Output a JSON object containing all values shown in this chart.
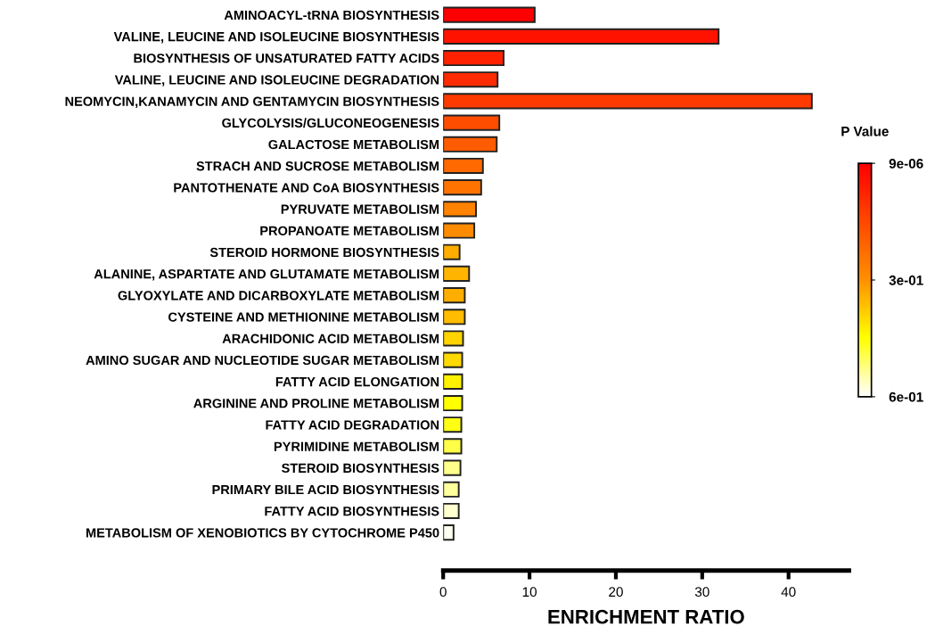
{
  "chart_data": {
    "type": "bar",
    "orientation": "horizontal",
    "xlabel": "ENRICHMENT RATIO",
    "clabel": "P Value",
    "categories": [
      "AMINOACYL-tRNA BIOSYNTHESIS",
      "VALINE, LEUCINE AND ISOLEUCINE BIOSYNTHESIS",
      "BIOSYNTHESIS OF UNSATURATED FATTY ACIDS",
      "VALINE, LEUCINE AND ISOLEUCINE DEGRADATION",
      "NEOMYCIN,KANAMYCIN AND GENTAMYCIN BIOSYNTHESIS",
      "GLYCOLYSIS/GLUCONEOGENESIS",
      "GALACTOSE METABOLISM",
      "STRACH AND SUCROSE METABOLISM",
      "PANTOTHENATE AND CoA BIOSYNTHESIS",
      "PYRUVATE METABOLISM",
      "PROPANOATE METABOLISM",
      "STEROID HORMONE BIOSYNTHESIS",
      "ALANINE, ASPARTATE AND GLUTAMATE METABOLISM",
      "GLYOXYLATE AND DICARBOXYLATE METABOLISM",
      "CYSTEINE AND METHIONINE METABOLISM",
      "ARACHIDONIC ACID METABOLISM",
      "AMINO SUGAR AND NUCLEOTIDE SUGAR METABOLISM",
      "FATTY ACID ELONGATION",
      "ARGININE AND PROLINE METABOLISM",
      "FATTY ACID DEGRADATION",
      "PYRIMIDINE METABOLISM",
      "STEROID BIOSYNTHESIS",
      "PRIMARY BILE ACID BIOSYNTHESIS",
      "FATTY ACID BIOSYNTHESIS",
      "METABOLISM OF XENOBIOTICS BY CYTOCHROME P450"
    ],
    "values": [
      10.6,
      31.9,
      7.0,
      6.3,
      42.7,
      6.5,
      6.2,
      4.6,
      4.4,
      3.8,
      3.6,
      1.9,
      3.0,
      2.5,
      2.5,
      2.3,
      2.2,
      2.2,
      2.2,
      2.1,
      2.1,
      2.0,
      1.8,
      1.8,
      1.2
    ],
    "cvalues": [
      9e-06,
      0.04,
      0.07,
      0.09,
      0.12,
      0.16,
      0.19,
      0.22,
      0.24,
      0.27,
      0.29,
      0.34,
      0.35,
      0.34,
      0.36,
      0.39,
      0.4,
      0.43,
      0.45,
      0.46,
      0.49,
      0.53,
      0.54,
      0.57,
      0.59
    ],
    "xlim": [
      0,
      47
    ],
    "xticks": [
      0,
      10,
      20,
      30,
      40
    ],
    "clim": [
      0.6,
      9e-06
    ],
    "cticks": [
      {
        "value": 9e-06,
        "label": "9e-06"
      },
      {
        "value": 0.3,
        "label": "3e-01"
      },
      {
        "value": 0.6,
        "label": "6e-01"
      }
    ],
    "grid": false,
    "legend": false
  }
}
